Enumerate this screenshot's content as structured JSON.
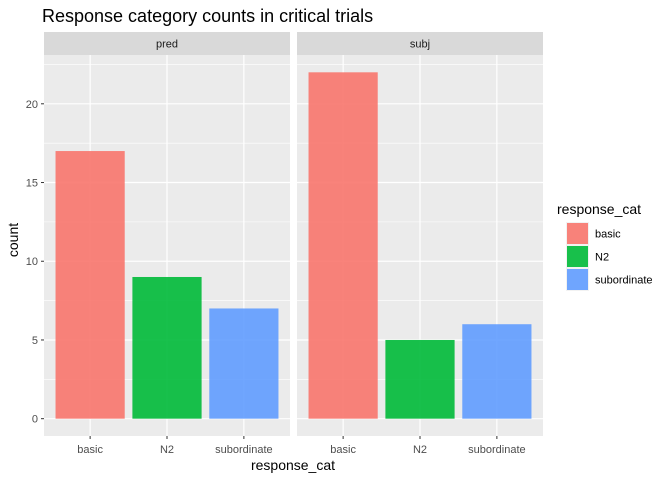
{
  "chart_data": {
    "type": "bar",
    "title": "Response category counts in critical trials",
    "xlabel": "response_cat",
    "ylabel": "count",
    "ylim": [
      -1.1,
      23.1
    ],
    "yticks": [
      0,
      5,
      10,
      15,
      20
    ],
    "grid": true,
    "legend": {
      "title": "response_cat",
      "placement": "right",
      "entries": [
        "basic",
        "N2",
        "subordinate"
      ]
    },
    "categories": [
      "basic",
      "N2",
      "subordinate"
    ],
    "colors": {
      "basic": "#F8766D",
      "N2": "#00BA38",
      "subordinate": "#619CFF"
    },
    "facets": [
      {
        "label": "pred",
        "values": [
          17,
          9,
          7
        ]
      },
      {
        "label": "subj",
        "values": [
          22,
          5,
          6
        ]
      }
    ]
  }
}
